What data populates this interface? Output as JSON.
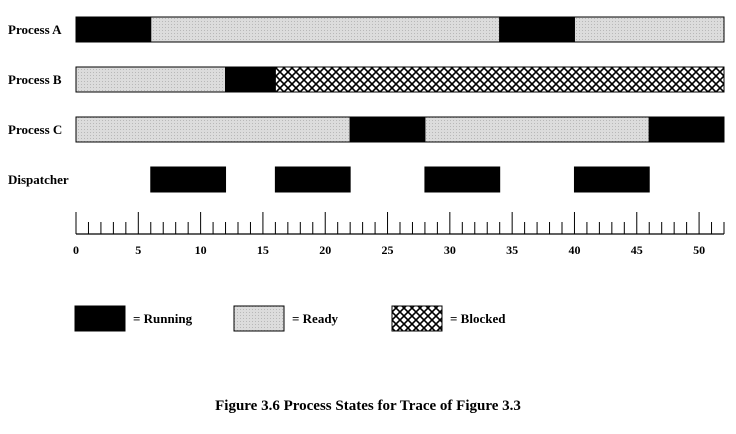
{
  "caption": "Figure 3.6   Process States for Trace of Figure 3.3",
  "colors": {
    "running": "#000000",
    "ready": "#dcdcdc",
    "blocked": "#ffffff",
    "outline": "#000000"
  },
  "chart_data": {
    "type": "gantt",
    "title": "",
    "xlim": [
      0,
      52
    ],
    "x_ticks": [
      0,
      5,
      10,
      15,
      20,
      25,
      30,
      35,
      40,
      45,
      50
    ],
    "minor_tick_step": 1,
    "rows": [
      {
        "name": "Process A",
        "segments": [
          {
            "start": 0,
            "end": 6,
            "state": "running"
          },
          {
            "start": 6,
            "end": 34,
            "state": "ready"
          },
          {
            "start": 34,
            "end": 40,
            "state": "running"
          },
          {
            "start": 40,
            "end": 52,
            "state": "ready"
          }
        ]
      },
      {
        "name": "Process B",
        "segments": [
          {
            "start": 0,
            "end": 12,
            "state": "ready"
          },
          {
            "start": 12,
            "end": 16,
            "state": "running"
          },
          {
            "start": 16,
            "end": 52,
            "state": "blocked"
          }
        ]
      },
      {
        "name": "Process C",
        "segments": [
          {
            "start": 0,
            "end": 22,
            "state": "ready"
          },
          {
            "start": 22,
            "end": 28,
            "state": "running"
          },
          {
            "start": 28,
            "end": 46,
            "state": "ready"
          },
          {
            "start": 46,
            "end": 52,
            "state": "running"
          }
        ]
      },
      {
        "name": "Dispatcher",
        "segments": [
          {
            "start": 6,
            "end": 12,
            "state": "running"
          },
          {
            "start": 16,
            "end": 22,
            "state": "running"
          },
          {
            "start": 28,
            "end": 34,
            "state": "running"
          },
          {
            "start": 40,
            "end": 46,
            "state": "running"
          }
        ]
      }
    ],
    "legend": [
      {
        "state": "running",
        "label": "= Running"
      },
      {
        "state": "ready",
        "label": "= Ready"
      },
      {
        "state": "blocked",
        "label": "= Blocked"
      }
    ]
  }
}
